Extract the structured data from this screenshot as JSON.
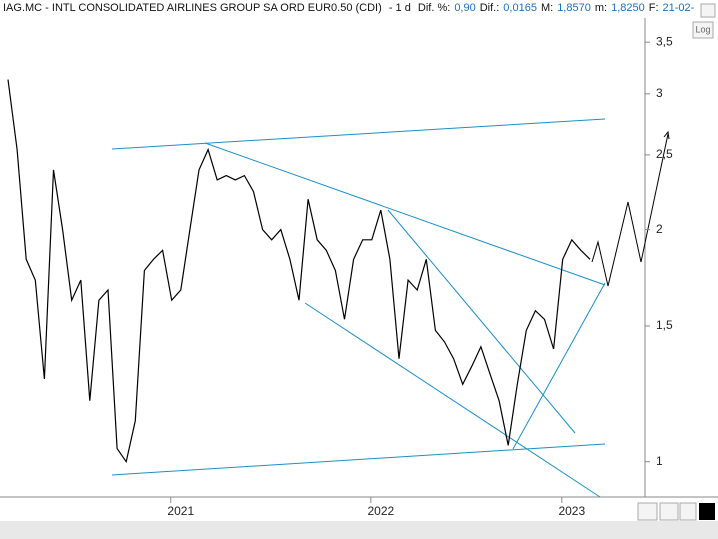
{
  "chart_data": {
    "type": "line",
    "title": "IAG.MC - INTL CONSOLIDATED AIRLINES GROUP SA ORD EUR0.50 (CDI)",
    "period": "-  1 d",
    "stats": [
      {
        "label": "Dif. %:",
        "value": "0,90"
      },
      {
        "label": "Dif.:",
        "value": "0,0165"
      },
      {
        "label": "M:",
        "value": "1,8570"
      },
      {
        "label": "m:",
        "value": "1,8250"
      },
      {
        "label": "F:",
        "value": "21-02-"
      }
    ],
    "log_button": "Log",
    "log_scale": true,
    "categories": [
      null,
      null,
      null,
      null,
      null,
      null,
      null,
      null,
      null,
      null,
      null,
      null,
      null,
      null,
      null,
      null,
      null,
      null,
      null,
      "2021",
      null,
      null,
      null,
      null,
      null,
      null,
      null,
      null,
      null,
      null,
      null,
      null,
      null,
      null,
      null,
      null,
      null,
      null,
      null,
      null,
      null,
      "2022",
      null,
      null,
      null,
      null,
      null,
      null,
      null,
      null,
      null,
      null,
      null,
      null,
      null,
      null,
      null,
      null,
      null,
      null,
      null,
      null,
      "2023",
      null,
      null
    ],
    "series": [
      {
        "color": "#000000",
        "values": [
          3.13,
          2.54,
          1.83,
          1.72,
          1.28,
          2.39,
          2.0,
          1.62,
          1.72,
          1.2,
          1.62,
          1.67,
          1.04,
          1.0,
          1.13,
          1.77,
          1.83,
          1.88,
          1.62,
          1.67,
          2.0,
          2.39,
          2.54,
          2.32,
          2.35,
          2.32,
          2.35,
          2.24,
          2.0,
          1.94,
          2.0,
          1.83,
          1.62,
          2.19,
          1.94,
          1.88,
          1.77,
          1.53,
          1.83,
          1.94,
          1.94,
          2.12,
          1.83,
          1.36,
          1.72,
          1.67,
          1.83,
          1.48,
          1.43,
          1.36,
          1.26,
          1.33,
          1.41,
          1.3,
          1.2,
          1.05,
          1.26,
          1.48,
          1.57,
          1.53,
          1.4,
          1.83,
          1.94,
          1.88,
          1.83
        ]
      }
    ],
    "ylim": [
      0.9,
      3.97
    ],
    "yticks": [
      1,
      {
        "value": 1.5,
        "label": "1,5"
      },
      2,
      {
        "value": 2.5,
        "label": "2,5"
      },
      3,
      {
        "value": 3.5,
        "label": "3,5"
      }
    ]
  }
}
